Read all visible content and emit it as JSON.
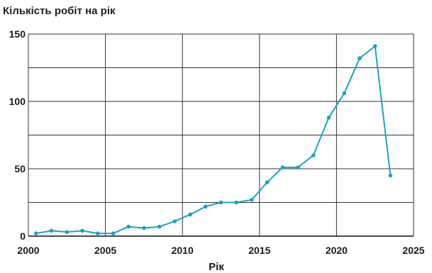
{
  "chart_data": {
    "type": "line",
    "title": "Кількість робіт на рік",
    "xlabel": "Рік",
    "ylabel": "",
    "xlim": [
      2000,
      2025
    ],
    "ylim": [
      0,
      150
    ],
    "xticks": [
      2000,
      2005,
      2010,
      2015,
      2020,
      2025
    ],
    "yticks": [
      0,
      50,
      100,
      150
    ],
    "x_gridlines": [
      2000,
      2005,
      2010,
      2015,
      2020,
      2025
    ],
    "y_gridlines": [
      0,
      25,
      50,
      75,
      100,
      125,
      150
    ],
    "grid": true,
    "legend": "none",
    "series": [
      {
        "color": "#1aa3c4",
        "x": [
          2000.5,
          2001.5,
          2002.5,
          2003.5,
          2004.5,
          2005.5,
          2006.5,
          2007.5,
          2008.5,
          2009.5,
          2010.5,
          2011.5,
          2012.5,
          2013.5,
          2014.5,
          2015.5,
          2016.5,
          2017.5,
          2018.5,
          2019.5,
          2020.5,
          2021.5,
          2022.5,
          2023.5
        ],
        "values": [
          2,
          4,
          3,
          4,
          2,
          2,
          7,
          6,
          7,
          11,
          16,
          22,
          25,
          25,
          27,
          40,
          51,
          51,
          60,
          88,
          106,
          132,
          141,
          45
        ]
      }
    ]
  }
}
